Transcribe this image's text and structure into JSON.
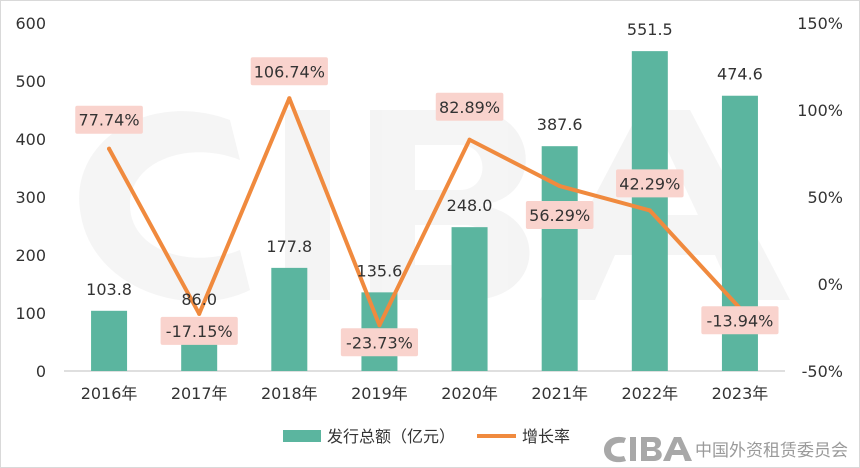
{
  "chart_data": {
    "type": "bar",
    "categories": [
      "2016年",
      "2017年",
      "2018年",
      "2019年",
      "2020年",
      "2021年",
      "2022年",
      "2023年"
    ],
    "series": [
      {
        "name": "发行总额（亿元）",
        "type": "bar",
        "axis": "left",
        "color": "#5bb59f",
        "values": [
          103.8,
          86.0,
          177.8,
          135.6,
          248.0,
          387.6,
          551.5,
          474.6
        ],
        "labels": [
          "103.8",
          "86.0",
          "177.8",
          "135.6",
          "248.0",
          "387.6",
          "551.5",
          "474.6"
        ]
      },
      {
        "name": "增长率",
        "type": "line",
        "axis": "right",
        "color": "#f08a3e",
        "values": [
          77.74,
          -17.15,
          106.74,
          -23.73,
          82.89,
          56.29,
          42.29,
          -13.94
        ],
        "labels": [
          "77.74%",
          "-17.15%",
          "106.74%",
          "-23.73%",
          "82.89%",
          "56.29%",
          "42.29%",
          "-13.94%"
        ]
      }
    ],
    "y_left": {
      "min": 0,
      "max": 600,
      "ticks": [
        "0",
        "100",
        "200",
        "300",
        "400",
        "500",
        "600"
      ]
    },
    "y_right": {
      "min": -50,
      "max": 150,
      "ticks": [
        "-50%",
        "0%",
        "50%",
        "100%",
        "150%"
      ]
    },
    "grid": false,
    "legend_position": "bottom-center",
    "label_box_color": "#f9d3cd",
    "title": "",
    "xlabel": "",
    "ylabel": ""
  },
  "watermark": {
    "text": "中国外资租赁委员会",
    "logo": "CIBA"
  }
}
